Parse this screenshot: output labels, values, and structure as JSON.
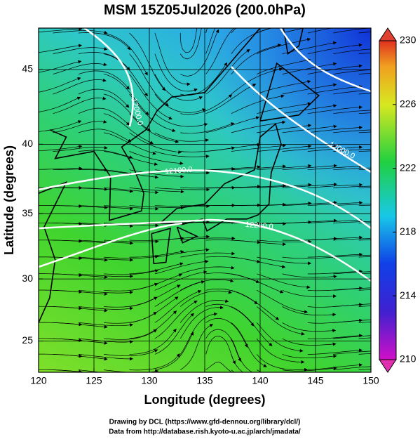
{
  "title": "MSM 15Z05Jul2026 (200.0hPa)",
  "map": {
    "type": "map",
    "projection": "mercator",
    "xlabel": "Longitude (degrees)",
    "ylabel": "Latitude  (degrees)",
    "xlim": [
      120,
      150
    ],
    "ylim": [
      22.4,
      47.6
    ],
    "xticks": [
      120,
      125,
      130,
      135,
      140,
      145,
      150
    ],
    "yticks": [
      25,
      30,
      35,
      40,
      45
    ],
    "grid": true,
    "contour_labels": [
      "12000.0",
      "12000.0",
      "12100.0",
      "12200.0"
    ]
  },
  "colorbar": {
    "lim": [
      210,
      230
    ],
    "ticks": [
      210,
      214,
      218,
      222,
      226,
      230
    ]
  },
  "credits": [
    "Drawing by DCL (https://www.gfd-dennou.org/library/dcl/)",
    "Data from http://database.rish.kyoto-u.ac.jp/arch/jmadata/"
  ]
}
